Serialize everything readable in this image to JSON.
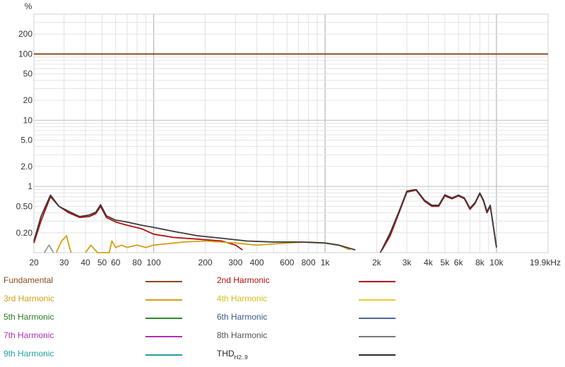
{
  "chart_data": {
    "type": "line",
    "title": "",
    "ylabel": "%",
    "x_unit": "kHz",
    "xscale": "log",
    "yscale": "log",
    "xlim": [
      20,
      20000
    ],
    "ylim": [
      0.1,
      400
    ],
    "grid": true,
    "x_ticks": [
      {
        "value": 20,
        "label": "20"
      },
      {
        "value": 30,
        "label": "30"
      },
      {
        "value": 40,
        "label": "40"
      },
      {
        "value": 50,
        "label": "50"
      },
      {
        "value": 60,
        "label": "60"
      },
      {
        "value": 80,
        "label": "80"
      },
      {
        "value": 100,
        "label": "100"
      },
      {
        "value": 200,
        "label": "200"
      },
      {
        "value": 300,
        "label": "300"
      },
      {
        "value": 400,
        "label": "400"
      },
      {
        "value": 600,
        "label": "600"
      },
      {
        "value": 800,
        "label": "800"
      },
      {
        "value": 1000,
        "label": "1k"
      },
      {
        "value": 2000,
        "label": "2k"
      },
      {
        "value": 3000,
        "label": "3k"
      },
      {
        "value": 4000,
        "label": "4k"
      },
      {
        "value": 5000,
        "label": "5k"
      },
      {
        "value": 6000,
        "label": "6k"
      },
      {
        "value": 8000,
        "label": "8k"
      },
      {
        "value": 10000,
        "label": "10k"
      },
      {
        "value": 19900,
        "label": "19.9kHz"
      }
    ],
    "y_ticks": [
      {
        "value": 200,
        "label": "200"
      },
      {
        "value": 100,
        "label": "100"
      },
      {
        "value": 50,
        "label": "50"
      },
      {
        "value": 20,
        "label": "20"
      },
      {
        "value": 10,
        "label": "10"
      },
      {
        "value": 5,
        "label": "5.0"
      },
      {
        "value": 2,
        "label": "2.0"
      },
      {
        "value": 1,
        "label": "1"
      },
      {
        "value": 0.5,
        "label": "0.50"
      },
      {
        "value": 0.2,
        "label": "0.20"
      }
    ],
    "series": [
      {
        "name": "Fundamental",
        "color": "#8b4a1c",
        "x": [
          20,
          20000
        ],
        "y": [
          100,
          100
        ]
      },
      {
        "name": "2nd Harmonic",
        "color": "#b01010",
        "x": [
          20,
          22,
          25,
          28,
          32,
          37,
          42,
          46,
          49,
          53,
          60,
          70,
          85,
          100,
          130,
          180,
          250,
          300,
          330
        ],
        "y": [
          0.14,
          0.3,
          0.7,
          0.5,
          0.4,
          0.34,
          0.35,
          0.39,
          0.5,
          0.34,
          0.29,
          0.26,
          0.23,
          0.19,
          0.17,
          0.16,
          0.15,
          0.13,
          0.11
        ]
      },
      {
        "name": "2nd Harmonic",
        "color": "#b01010",
        "x": [
          2150,
          2400,
          2700,
          3000,
          3400,
          3800,
          4200,
          4600,
          5000,
          5500,
          6000,
          6500,
          7000,
          7500,
          8000,
          8400,
          8800,
          9200,
          10000
        ],
        "y": [
          0.11,
          0.18,
          0.4,
          0.82,
          0.88,
          0.6,
          0.5,
          0.5,
          0.72,
          0.65,
          0.72,
          0.65,
          0.45,
          0.55,
          0.78,
          0.6,
          0.4,
          0.5,
          0.12
        ]
      },
      {
        "name": "3rd Harmonic",
        "color": "#d4a017",
        "x": [
          40,
          43,
          47,
          55,
          57,
          60,
          65,
          70,
          80,
          90,
          100,
          150,
          200,
          300,
          400,
          600,
          800,
          1000,
          1200,
          1400
        ],
        "y": [
          0.1,
          0.13,
          0.1,
          0.1,
          0.15,
          0.12,
          0.13,
          0.12,
          0.13,
          0.12,
          0.13,
          0.145,
          0.15,
          0.14,
          0.13,
          0.14,
          0.145,
          0.14,
          0.13,
          0.11
        ]
      },
      {
        "name": "3rd Harmonic",
        "color": "#d4a017",
        "x": [
          27,
          29,
          31,
          32,
          33
        ],
        "y": [
          0.1,
          0.15,
          0.18,
          0.13,
          0.1
        ]
      },
      {
        "name": "8th Harmonic",
        "color": "#9a9a9a",
        "x": [
          23,
          24.5,
          26
        ],
        "y": [
          0.1,
          0.13,
          0.1
        ]
      },
      {
        "name": "THD",
        "color": "#3a3a3a",
        "x": [
          20,
          22,
          25,
          28,
          32,
          37,
          42,
          46,
          49,
          53,
          60,
          70,
          85,
          100,
          130,
          180,
          250,
          350,
          500,
          700,
          1000,
          1200,
          1500
        ],
        "y": [
          0.15,
          0.35,
          0.74,
          0.5,
          0.42,
          0.35,
          0.37,
          0.41,
          0.53,
          0.36,
          0.31,
          0.29,
          0.26,
          0.24,
          0.21,
          0.18,
          0.165,
          0.15,
          0.145,
          0.145,
          0.14,
          0.13,
          0.11
        ]
      },
      {
        "name": "THD",
        "color": "#3a3a3a",
        "x": [
          2100,
          2400,
          2700,
          3000,
          3400,
          3800,
          4200,
          4600,
          5000,
          5500,
          6000,
          6500,
          7000,
          7500,
          8000,
          8400,
          8800,
          9200,
          10000
        ],
        "y": [
          0.1,
          0.2,
          0.42,
          0.85,
          0.9,
          0.62,
          0.52,
          0.52,
          0.75,
          0.67,
          0.74,
          0.67,
          0.47,
          0.57,
          0.8,
          0.62,
          0.42,
          0.52,
          0.12
        ]
      }
    ]
  },
  "legend": [
    {
      "label": "Fundamental",
      "sub": "",
      "text_color": "#8b4a1c",
      "line_color": "#8b4a1c"
    },
    {
      "label": "2nd Harmonic",
      "sub": "",
      "text_color": "#b01010",
      "line_color": "#b01010"
    },
    {
      "label": "3rd Harmonic",
      "sub": "",
      "text_color": "#d4a017",
      "line_color": "#d4a017"
    },
    {
      "label": "4th Harmonic",
      "sub": "",
      "text_color": "#d4c017",
      "line_color": "#e8cc30"
    },
    {
      "label": "5th Harmonic",
      "sub": "",
      "text_color": "#2a7a2a",
      "line_color": "#2a8a2a"
    },
    {
      "label": "6th Harmonic",
      "sub": "",
      "text_color": "#3a5a8a",
      "line_color": "#4a6a9a"
    },
    {
      "label": "7th Harmonic",
      "sub": "",
      "text_color": "#b030b0",
      "line_color": "#b030b0"
    },
    {
      "label": "8th Harmonic",
      "sub": "",
      "text_color": "#555555",
      "line_color": "#7a7a7a"
    },
    {
      "label": "9th Harmonic",
      "sub": "",
      "text_color": "#20a0a0",
      "line_color": "#20a0a0"
    },
    {
      "label": "THD",
      "sub": "H2..9",
      "text_color": "#222222",
      "line_color": "#2a2a2a"
    }
  ]
}
